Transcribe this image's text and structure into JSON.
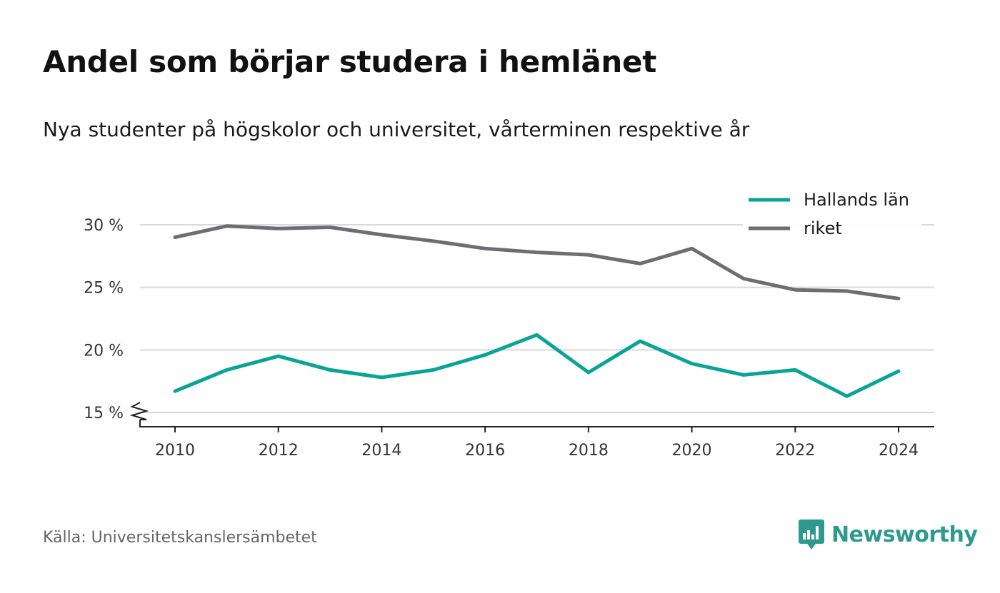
{
  "header": {
    "title": "Andel som börjar studera i hemlänet",
    "subtitle": "Nya studenter på högskolor och universitet, vårterminen respektive år"
  },
  "footer": {
    "source": "Källa: Universitetskanslersämbetet",
    "brand": "Newsworthy"
  },
  "colors": {
    "grid": "#d9d9d9",
    "axis": "#222222",
    "brand": "#2e9a8f"
  },
  "chart_data": {
    "type": "line",
    "x": [
      2010,
      2011,
      2012,
      2013,
      2014,
      2015,
      2016,
      2017,
      2018,
      2019,
      2020,
      2021,
      2022,
      2023,
      2024
    ],
    "series": [
      {
        "name": "Hallands län",
        "color": "#0aa398",
        "values": [
          16.7,
          18.4,
          19.5,
          18.4,
          17.8,
          18.4,
          19.6,
          21.2,
          18.2,
          20.7,
          18.9,
          18.0,
          18.4,
          16.3,
          18.3
        ]
      },
      {
        "name": "riket",
        "color": "#6e6d73",
        "values": [
          29.0,
          29.9,
          29.7,
          29.8,
          29.2,
          28.7,
          28.1,
          27.8,
          27.6,
          26.9,
          28.1,
          25.7,
          24.8,
          24.7,
          24.1
        ]
      }
    ],
    "y_ticks": [
      15,
      20,
      25,
      30
    ],
    "y_tick_labels": [
      "15 %",
      "20 %",
      "25 %",
      "30 %"
    ],
    "x_ticks": [
      2010,
      2012,
      2014,
      2016,
      2018,
      2020,
      2022,
      2024
    ],
    "x_tick_labels": [
      "2010",
      "2012",
      "2014",
      "2016",
      "2018",
      "2020",
      "2022",
      "2024"
    ],
    "ylim": [
      15,
      30
    ],
    "axis_break": true,
    "grid": true,
    "legend": "top-right"
  }
}
